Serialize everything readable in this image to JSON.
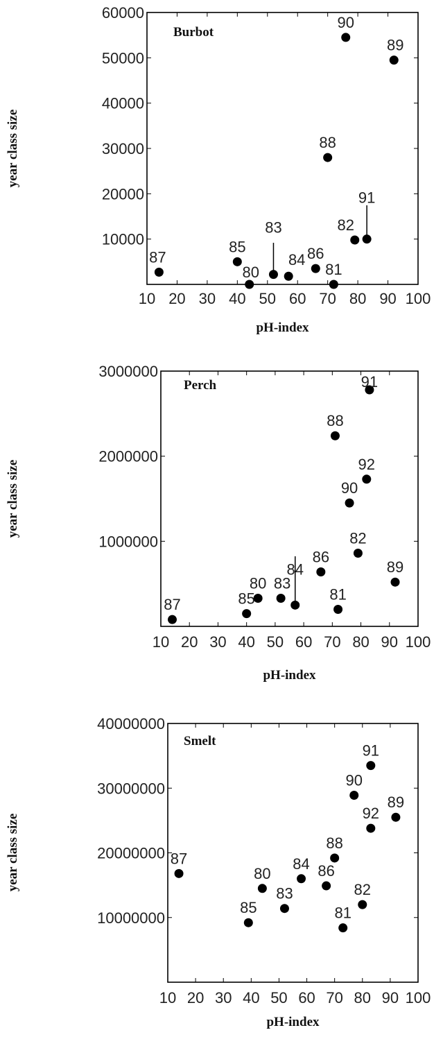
{
  "chart_data": [
    {
      "type": "scatter",
      "title": "Burbot",
      "xlabel": "pH-index",
      "ylabel": "year class size",
      "xlim": [
        10,
        100
      ],
      "ylim": [
        0,
        60000
      ],
      "xticks": [
        "10",
        "20",
        "30",
        "40",
        "50",
        "60",
        "70",
        "80",
        "90",
        "100"
      ],
      "yticks": [
        "10000",
        "20000",
        "30000",
        "40000",
        "50000",
        "60000"
      ],
      "grid": false,
      "points": [
        {
          "label": "87",
          "x": 14,
          "y": 2700
        },
        {
          "label": "85",
          "x": 40,
          "y": 5000
        },
        {
          "label": "80",
          "x": 44,
          "y": 0
        },
        {
          "label": "83",
          "x": 52,
          "y": 2200
        },
        {
          "label": "84",
          "x": 57,
          "y": 1800
        },
        {
          "label": "86",
          "x": 66,
          "y": 3500
        },
        {
          "label": "81",
          "x": 72,
          "y": 0
        },
        {
          "label": "88",
          "x": 70,
          "y": 28000
        },
        {
          "label": "82",
          "x": 79,
          "y": 9800
        },
        {
          "label": "91",
          "x": 83,
          "y": 10000
        },
        {
          "label": "90",
          "x": 76,
          "y": 54500
        },
        {
          "label": "89",
          "x": 92,
          "y": 49500
        }
      ]
    },
    {
      "type": "scatter",
      "title": "Perch",
      "xlabel": "pH-index",
      "ylabel": "year class size",
      "xlim": [
        10,
        100
      ],
      "ylim": [
        0,
        3000000
      ],
      "xticks": [
        "10",
        "20",
        "30",
        "40",
        "50",
        "60",
        "70",
        "80",
        "90",
        "100"
      ],
      "yticks": [
        "1000000",
        "2000000",
        "3000000"
      ],
      "grid": false,
      "points": [
        {
          "label": "87",
          "x": 14,
          "y": 80000
        },
        {
          "label": "85",
          "x": 40,
          "y": 150000
        },
        {
          "label": "80",
          "x": 44,
          "y": 330000
        },
        {
          "label": "83",
          "x": 52,
          "y": 330000
        },
        {
          "label": "84",
          "x": 57,
          "y": 250000
        },
        {
          "label": "86",
          "x": 66,
          "y": 640000
        },
        {
          "label": "81",
          "x": 72,
          "y": 200000
        },
        {
          "label": "82",
          "x": 79,
          "y": 860000
        },
        {
          "label": "89",
          "x": 92,
          "y": 520000
        },
        {
          "label": "90",
          "x": 76,
          "y": 1450000
        },
        {
          "label": "92",
          "x": 82,
          "y": 1730000
        },
        {
          "label": "88",
          "x": 71,
          "y": 2240000
        },
        {
          "label": "91",
          "x": 83,
          "y": 2780000
        }
      ]
    },
    {
      "type": "scatter",
      "title": "Smelt",
      "xlabel": "pH-index",
      "ylabel": "year class size",
      "xlim": [
        10,
        100
      ],
      "ylim": [
        0,
        40000000
      ],
      "xticks": [
        "10",
        "20",
        "30",
        "40",
        "50",
        "60",
        "70",
        "80",
        "90",
        "100"
      ],
      "yticks": [
        "10000000",
        "20000000",
        "30000000",
        "40000000"
      ],
      "grid": false,
      "points": [
        {
          "label": "87",
          "x": 14,
          "y": 16800000
        },
        {
          "label": "85",
          "x": 39,
          "y": 9200000
        },
        {
          "label": "80",
          "x": 44,
          "y": 14500000
        },
        {
          "label": "83",
          "x": 52,
          "y": 11400000
        },
        {
          "label": "84",
          "x": 58,
          "y": 16000000
        },
        {
          "label": "86",
          "x": 67,
          "y": 14900000
        },
        {
          "label": "88",
          "x": 70,
          "y": 19200000
        },
        {
          "label": "81",
          "x": 73,
          "y": 8400000
        },
        {
          "label": "82",
          "x": 80,
          "y": 12000000
        },
        {
          "label": "90",
          "x": 77,
          "y": 28900000
        },
        {
          "label": "92",
          "x": 83,
          "y": 23800000
        },
        {
          "label": "91",
          "x": 83,
          "y": 33500000
        },
        {
          "label": "89",
          "x": 92,
          "y": 25500000
        }
      ]
    }
  ]
}
